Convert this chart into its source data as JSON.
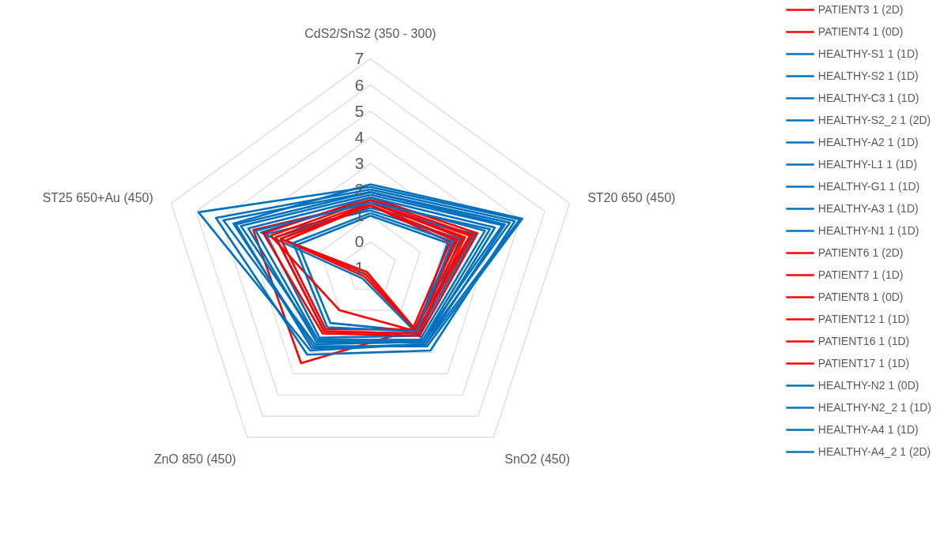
{
  "chart_data": {
    "type": "radar",
    "categories": [
      "CdS2/SnS2 (350 - 300)",
      "ST20 650 (450)",
      "SnO2 (450)",
      "ZnO 850 (450)",
      "ST25 650+Au (450)"
    ],
    "ylim": [
      -1,
      7
    ],
    "yticks": [
      -1,
      0,
      1,
      2,
      3,
      4,
      5,
      6,
      7
    ],
    "grid": true,
    "legend": "right",
    "series": [
      {
        "name": "PATIENT3 1 (2D)",
        "color": "#ff0000",
        "values": [
          1.5,
          3.0,
          1.9,
          3.5,
          3.7
        ]
      },
      {
        "name": "PATIENT4 1 (0D)",
        "color": "#ff0000",
        "values": [
          1.4,
          2.4,
          1.9,
          -0.6,
          2.6
        ]
      },
      {
        "name": "HEALTHY-S1 1 (1D)",
        "color": "#0070c0",
        "values": [
          2.1,
          5.0,
          2.6,
          2.9,
          5.9
        ]
      },
      {
        "name": "HEALTHY-S2 1 (1D)",
        "color": "#0070c0",
        "values": [
          1.9,
          4.6,
          2.5,
          2.6,
          4.9
        ]
      },
      {
        "name": "HEALTHY-C3 1 (1D)",
        "color": "#0070c0",
        "values": [
          1.2,
          2.6,
          2.2,
          2.3,
          3.2
        ]
      },
      {
        "name": "HEALTHY-S2_2 1 (2D)",
        "color": "#0070c0",
        "values": [
          2.0,
          4.8,
          2.9,
          3.1,
          5.2
        ]
      },
      {
        "name": "HEALTHY-A2 1 (1D)",
        "color": "#0070c0",
        "values": [
          1.0,
          2.1,
          2.0,
          1.6,
          1.9
        ]
      },
      {
        "name": "HEALTHY-L1 1 (1D)",
        "color": "#0070c0",
        "values": [
          1.8,
          4.3,
          2.4,
          2.4,
          4.2
        ]
      },
      {
        "name": "HEALTHY-G1 1 (1D)",
        "color": "#0070c0",
        "values": [
          1.6,
          3.6,
          2.3,
          -0.5,
          3.4
        ]
      },
      {
        "name": "HEALTHY-A3 1 (1D)",
        "color": "#0070c0",
        "values": [
          1.3,
          3.2,
          2.1,
          2.0,
          2.8
        ]
      },
      {
        "name": "HEALTHY-N1 1 (1D)",
        "color": "#0070c0",
        "values": [
          2.2,
          5.1,
          2.7,
          2.7,
          4.5
        ]
      },
      {
        "name": "PATIENT6 1 (2D)",
        "color": "#ff0000",
        "values": [
          1.6,
          3.1,
          2.0,
          1.0,
          3.0
        ]
      },
      {
        "name": "PATIENT7 1 (1D)",
        "color": "#ff0000",
        "values": [
          1.5,
          2.7,
          1.9,
          -0.7,
          2.4
        ]
      },
      {
        "name": "PATIENT8 1 (0D)",
        "color": "#ff0000",
        "values": [
          1.7,
          3.3,
          2.2,
          2.1,
          3.3
        ]
      },
      {
        "name": "PATIENT12 1 (1D)",
        "color": "#ff0000",
        "values": [
          1.4,
          2.5,
          1.9,
          1.9,
          2.6
        ]
      },
      {
        "name": "PATIENT16 1 (1D)",
        "color": "#ff0000",
        "values": [
          1.5,
          2.8,
          2.1,
          2.0,
          2.8
        ]
      },
      {
        "name": "PATIENT17 1 (1D)",
        "color": "#ff0000",
        "values": [
          1.4,
          2.2,
          1.8,
          -0.8,
          2.4
        ]
      },
      {
        "name": "HEALTHY-N2 1 (0D)",
        "color": "#0070c0",
        "values": [
          1.5,
          3.8,
          2.4,
          2.4,
          3.6
        ]
      },
      {
        "name": "HEALTHY-N2_2 1 (1D)",
        "color": "#0070c0",
        "values": [
          1.7,
          4.0,
          2.5,
          2.5,
          3.9
        ]
      },
      {
        "name": "HEALTHY-A4 1 (1D)",
        "color": "#0070c0",
        "values": [
          1.1,
          2.3,
          2.0,
          1.8,
          2.1
        ]
      },
      {
        "name": "HEALTHY-A4_2 1 (2D)",
        "color": "#0070c0",
        "values": [
          1.9,
          4.4,
          2.6,
          2.8,
          4.4
        ]
      }
    ]
  }
}
